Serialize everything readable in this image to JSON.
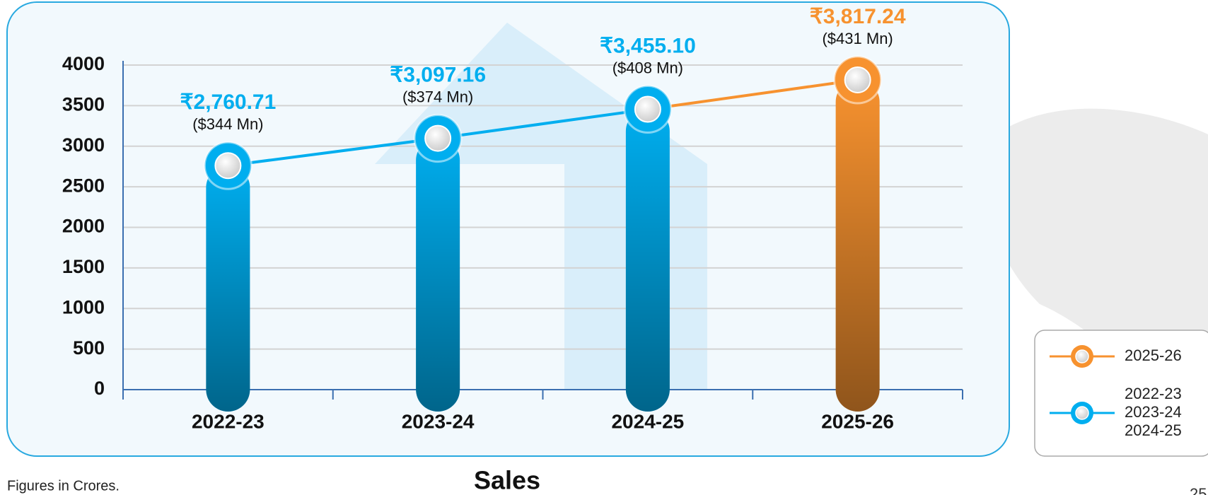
{
  "chart_data": {
    "type": "bar",
    "title": "Sales",
    "footnote": "Figures in Crores.",
    "page_number": "25",
    "categories": [
      "2022-23",
      "2023-24",
      "2024-25",
      "2025-26"
    ],
    "values": [
      2760.71,
      3097.16,
      3455.1,
      3817.24
    ],
    "value_labels": [
      "₹2,760.71",
      "₹3,097.16",
      "₹3,455.10",
      "₹3,817.24"
    ],
    "usd_labels": [
      "($344 Mn)",
      "($374 Mn)",
      "($408 Mn)",
      "($431 Mn)"
    ],
    "colors": [
      "#00aeef",
      "#00aeef",
      "#00aeef",
      "#f7922f"
    ],
    "ylim": [
      0,
      4000
    ],
    "yticks": [
      0,
      500,
      1000,
      1500,
      2000,
      2500,
      3000,
      3500,
      4000
    ],
    "grid": true,
    "legend": [
      {
        "labels": [
          "2025-26"
        ],
        "color": "#f7922f"
      },
      {
        "labels": [
          "2022-23",
          "2023-24",
          "2024-25"
        ],
        "color": "#00aeef"
      }
    ]
  }
}
